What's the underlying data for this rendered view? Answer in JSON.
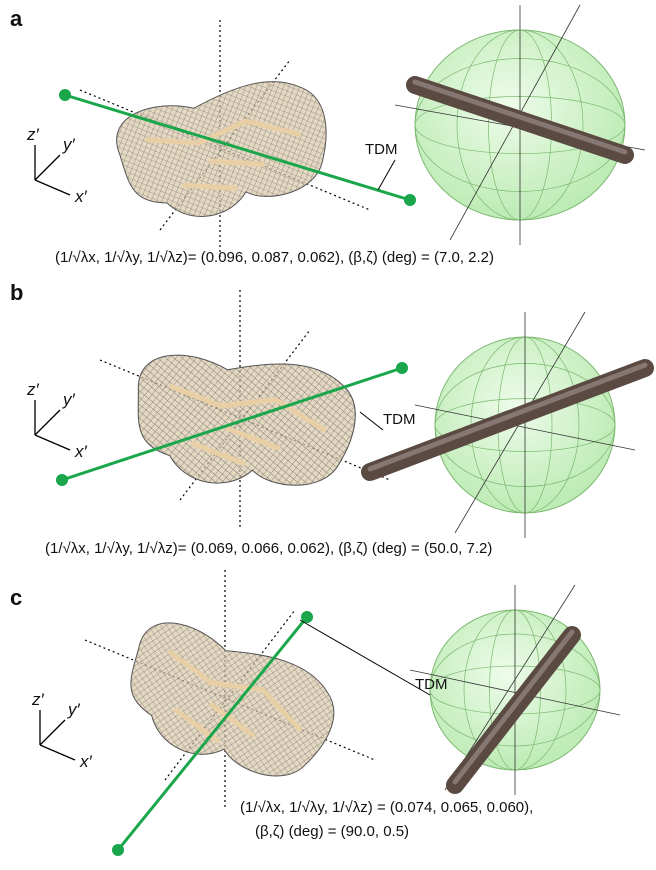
{
  "panels": [
    {
      "label": "a",
      "axes": [
        "z′",
        "y′",
        "x′"
      ],
      "tdm": "TDM",
      "caption": [
        "(1/√λx, 1/√λy, 1/√λz)= (0.096, 0.087, 0.062), (β,ζ) (deg) = (7.0, 2.2)"
      ]
    },
    {
      "label": "b",
      "axes": [
        "z′",
        "y′",
        "x′"
      ],
      "tdm": "TDM",
      "caption": [
        "(1/√λx, 1/√λy, 1/√λz)= (0.069, 0.066, 0.062), (β,ζ) (deg) = (50.0, 7.2)"
      ]
    },
    {
      "label": "c",
      "axes": [
        "z′",
        "y′",
        "x′"
      ],
      "tdm": "TDM",
      "caption": [
        "(1/√λx, 1/√λy, 1/√λz) = (0.074, 0.065, 0.060),",
        "(β,ζ) (deg) = (90.0, 0.5)"
      ]
    }
  ]
}
